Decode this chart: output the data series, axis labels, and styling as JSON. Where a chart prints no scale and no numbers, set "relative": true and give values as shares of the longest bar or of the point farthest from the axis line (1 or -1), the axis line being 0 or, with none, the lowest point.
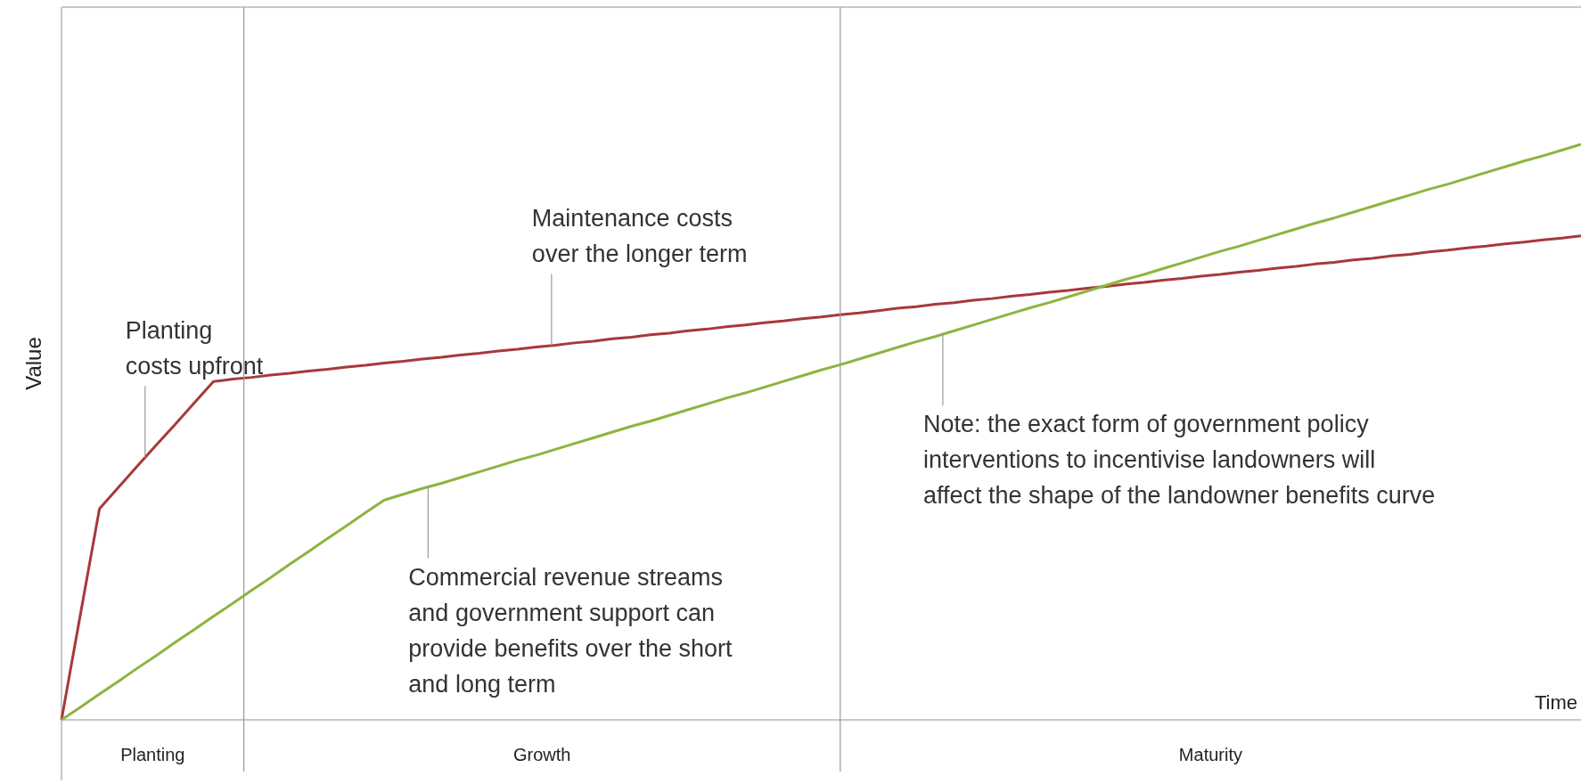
{
  "chart_data": {
    "type": "line",
    "relative": true,
    "xlabel": "Time",
    "ylabel": "Value",
    "categories": [
      null,
      null,
      null,
      null,
      null,
      null,
      null,
      null,
      null,
      null,
      null,
      null,
      null,
      null,
      null,
      null,
      null,
      null,
      null,
      null,
      null,
      null,
      null,
      null,
      null,
      null,
      null,
      null,
      null,
      null,
      null,
      null,
      null,
      null,
      null,
      null,
      null,
      null,
      null,
      null,
      null,
      null,
      null,
      null,
      null,
      null,
      null,
      null,
      null,
      null,
      null,
      null,
      null,
      null,
      null,
      null,
      null,
      null,
      null,
      null,
      null,
      null,
      null,
      null,
      null,
      null,
      null,
      null,
      null,
      null,
      null,
      null,
      null,
      null,
      null,
      null,
      null,
      null,
      null,
      null,
      null
    ],
    "series": [
      {
        "color": "#a8383a",
        "values": [
          0,
          0.184,
          0.367,
          0.404,
          0.441,
          0.478,
          0.514,
          0.551,
          0.588,
          0.592,
          0.595,
          0.599,
          0.602,
          0.606,
          0.609,
          0.613,
          0.616,
          0.62,
          0.623,
          0.627,
          0.63,
          0.634,
          0.637,
          0.641,
          0.644,
          0.648,
          0.651,
          0.655,
          0.658,
          0.662,
          0.665,
          0.669,
          0.672,
          0.676,
          0.679,
          0.683,
          0.686,
          0.69,
          0.693,
          0.697,
          0.7,
          0.704,
          0.707,
          0.711,
          0.715,
          0.718,
          0.722,
          0.725,
          0.729,
          0.732,
          0.736,
          0.739,
          0.743,
          0.746,
          0.75,
          0.753,
          0.757,
          0.76,
          0.764,
          0.767,
          0.771,
          0.774,
          0.778,
          0.781,
          0.785,
          0.788,
          0.792,
          0.795,
          0.799,
          0.802,
          0.806,
          0.809,
          0.813,
          0.816,
          0.82,
          0.823,
          0.827,
          0.83,
          0.834,
          0.837,
          0.841
        ]
      },
      {
        "color": "#8db43e",
        "values": [
          0,
          0.022,
          0.045,
          0.067,
          0.09,
          0.112,
          0.135,
          0.157,
          0.18,
          0.202,
          0.225,
          0.247,
          0.27,
          0.292,
          0.315,
          0.337,
          0.36,
          0.382,
          0.392,
          0.402,
          0.411,
          0.421,
          0.431,
          0.441,
          0.451,
          0.46,
          0.47,
          0.48,
          0.49,
          0.5,
          0.51,
          0.519,
          0.529,
          0.539,
          0.549,
          0.559,
          0.568,
          0.578,
          0.588,
          0.598,
          0.608,
          0.617,
          0.627,
          0.637,
          0.647,
          0.657,
          0.666,
          0.676,
          0.686,
          0.696,
          0.706,
          0.716,
          0.725,
          0.735,
          0.745,
          0.755,
          0.765,
          0.774,
          0.784,
          0.794,
          0.804,
          0.814,
          0.823,
          0.833,
          0.843,
          0.853,
          0.863,
          0.872,
          0.882,
          0.892,
          0.902,
          0.912,
          0.922,
          0.931,
          0.941,
          0.951,
          0.961,
          0.971,
          0.98,
          0.99,
          1
        ]
      }
    ],
    "annotations": [
      "Planting\ncosts upfront",
      "Maintenance costs\nover the longer term",
      "Commercial revenue streams\nand government support can\nprovide benefits over the short\nand long term",
      "Note: the exact form of government policy\ninterventions to incentivise landowners will\naffect the shape of the landowner benefits curve",
      "Planting",
      "Growth",
      "Maturity"
    ]
  }
}
